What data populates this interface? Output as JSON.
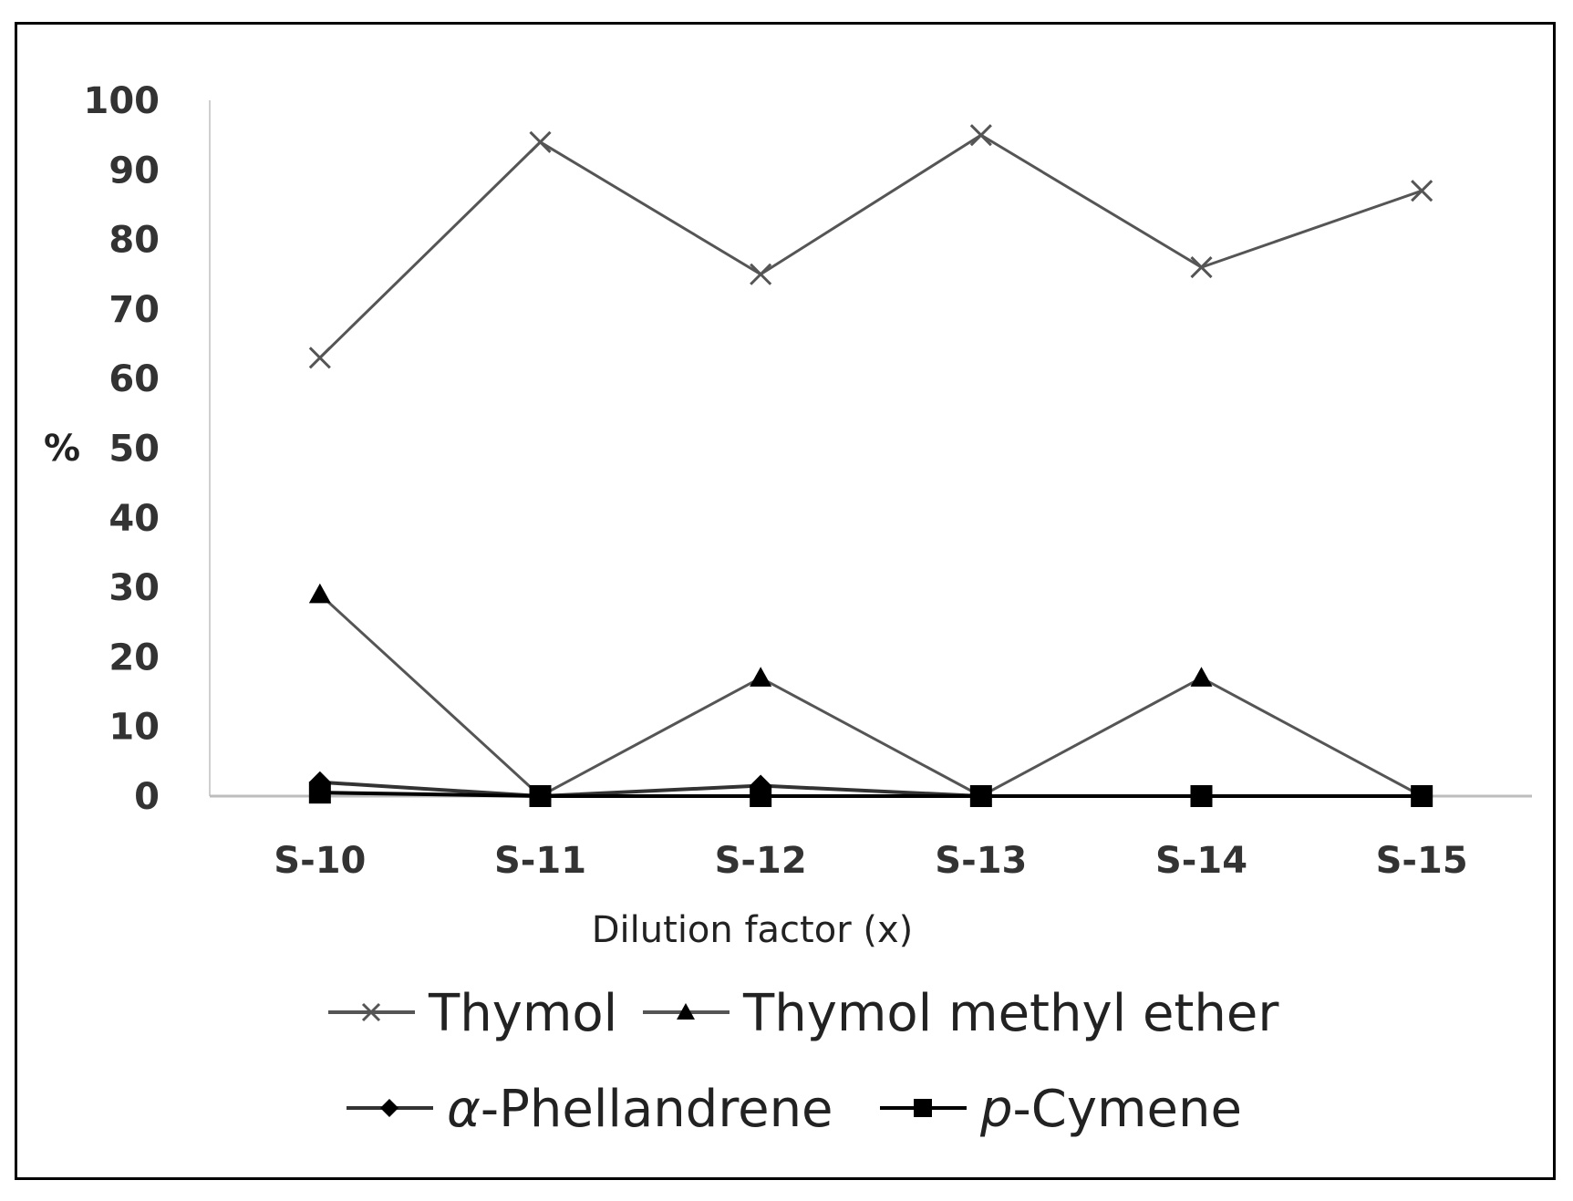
{
  "chart_data": {
    "type": "line",
    "title": "",
    "xlabel": "Dilution factor (x)",
    "ylabel": "%",
    "ylim": [
      0,
      100
    ],
    "yticks": [
      0,
      10,
      20,
      30,
      40,
      50,
      60,
      70,
      80,
      90,
      100
    ],
    "categories": [
      "S-10",
      "S-11",
      "S-12",
      "S-13",
      "S-14",
      "S-15"
    ],
    "grid": false,
    "legend_position": "bottom",
    "series": [
      {
        "name": "Thymol",
        "marker": "x",
        "color": "#555555",
        "values": [
          63,
          94,
          75,
          95,
          76,
          87
        ]
      },
      {
        "name": "Thymol methyl ether",
        "marker": "triangle",
        "color": "#555555",
        "values": [
          29,
          0,
          17,
          0,
          17,
          0
        ]
      },
      {
        "name": "α-Phellandrene",
        "name_prefix": "α",
        "name_suffix": "-Phellandrene",
        "marker": "diamond",
        "color": "#333333",
        "values": [
          2,
          0,
          1.5,
          0,
          0,
          0
        ]
      },
      {
        "name": "p-Cymene",
        "name_prefix": "p",
        "name_suffix": "-Cymene",
        "marker": "square",
        "color": "#000000",
        "values": [
          0.5,
          0,
          0,
          0,
          0,
          0
        ]
      }
    ]
  }
}
